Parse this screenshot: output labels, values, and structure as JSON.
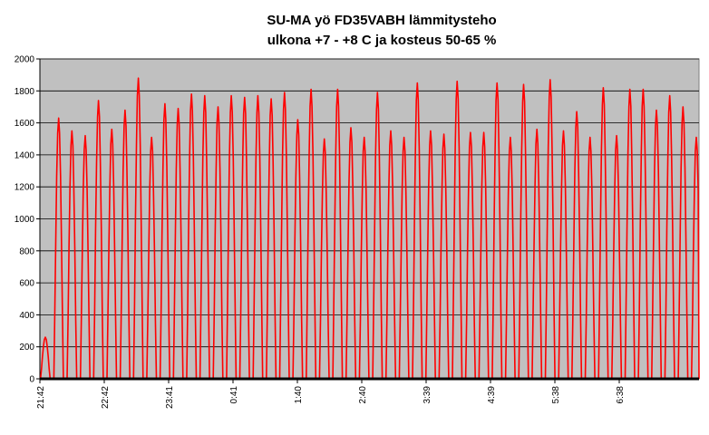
{
  "chart_data": {
    "type": "line",
    "title_line1": "SU-MA yö FD35VABH lämmitysteho",
    "title_line2": "ulkona +7 - +8 C ja kosteus 50-65 %",
    "xlabel": "",
    "ylabel": "",
    "ylim": [
      0,
      2000
    ],
    "yticks": [
      0,
      200,
      400,
      600,
      800,
      1000,
      1200,
      1400,
      1600,
      1800,
      2000
    ],
    "xticks": [
      "21:42",
      "22:42",
      "23:41",
      "0:41",
      "1:40",
      "2:40",
      "3:39",
      "4:39",
      "5:38",
      "6:38"
    ],
    "grid": "horizontal",
    "plot_background": "#c0c0c0",
    "series_color": "#ff0000",
    "series": [
      {
        "peaks": [
          260,
          1630,
          1550,
          1520,
          1740,
          1560,
          1680,
          1880,
          1510,
          1720,
          1690,
          1780,
          1770,
          1700,
          1770,
          1760,
          1770,
          1750,
          1790,
          1620,
          1810,
          1500,
          1810,
          1570,
          1510,
          1790,
          1550,
          1510,
          1850,
          1550,
          1530,
          1860,
          1540,
          1540,
          1850,
          1510,
          1840,
          1560,
          1870,
          1550,
          1670,
          1510,
          1820,
          1520,
          1810,
          1810,
          1680,
          1770,
          1700,
          1510
        ]
      }
    ]
  }
}
